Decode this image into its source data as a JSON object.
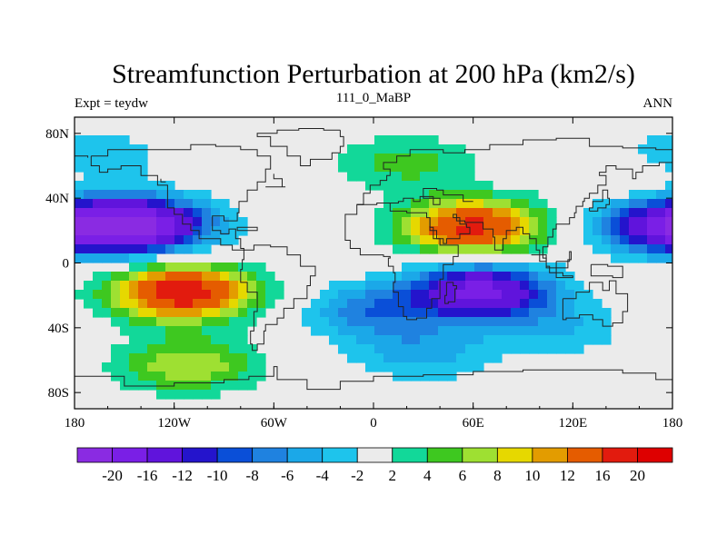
{
  "chart_data": {
    "type": "heatmap",
    "title": "Streamfunction Perturbation at 200 hPa (km2/s)",
    "left_string": "Expt = teydw",
    "center_string": "111_0_MaBP",
    "right_string": "ANN",
    "projection": "cylindrical equidistant",
    "xlim": [
      -180,
      180
    ],
    "ylim": [
      -90,
      90
    ],
    "x_ticks": [
      {
        "value": -180,
        "label": "180"
      },
      {
        "value": -120,
        "label": "120W"
      },
      {
        "value": -60,
        "label": "60W"
      },
      {
        "value": 0,
        "label": "0"
      },
      {
        "value": 60,
        "label": "60E"
      },
      {
        "value": 120,
        "label": "120E"
      },
      {
        "value": 180,
        "label": "180"
      }
    ],
    "y_ticks": [
      {
        "value": 80,
        "label": "80N"
      },
      {
        "value": 40,
        "label": "40N"
      },
      {
        "value": 0,
        "label": "0"
      },
      {
        "value": -40,
        "label": "40S"
      },
      {
        "value": -80,
        "label": "80S"
      }
    ],
    "colorbar": {
      "levels": [
        -20,
        -16,
        -12,
        -10,
        -8,
        -6,
        -4,
        -2,
        2,
        4,
        6,
        8,
        10,
        12,
        16,
        20
      ],
      "labels": [
        "-20",
        "-16",
        "-12",
        "-10",
        "-8",
        "-6",
        "-4",
        "-2",
        "2",
        "4",
        "6",
        "8",
        "10",
        "12",
        "16",
        "20"
      ],
      "colors": [
        "#8a2be2",
        "#7a1fe6",
        "#6014dc",
        "#2414cc",
        "#0a4fd8",
        "#1f82e0",
        "#1ba8e8",
        "#1ec4ec",
        "#ebebeb",
        "#12d899",
        "#3ec820",
        "#9ee032",
        "#e6d800",
        "#e39c00",
        "#e55c00",
        "#e21b0e",
        "#de0000"
      ]
    },
    "field_centers": [
      {
        "lon": -140,
        "lat": 23,
        "value": -19
      },
      {
        "lon": -115,
        "lat": -18,
        "value": 19
      },
      {
        "lon": -112,
        "lat": -63,
        "value": 8
      },
      {
        "lon": 60,
        "lat": 22,
        "value": 17
      },
      {
        "lon": 65,
        "lat": -17,
        "value": -17
      },
      {
        "lon": 30,
        "lat": -55,
        "value": -5
      },
      {
        "lon": 175,
        "lat": 23,
        "value": -14
      },
      {
        "lon": 20,
        "lat": 62,
        "value": 5
      },
      {
        "lon": -175,
        "lat": 65,
        "value": -5
      },
      {
        "lon": 160,
        "lat": 55,
        "value": 3
      },
      {
        "lon": 0,
        "lat": -30,
        "value": -7
      },
      {
        "lon": 110,
        "lat": -40,
        "value": -4
      }
    ]
  }
}
